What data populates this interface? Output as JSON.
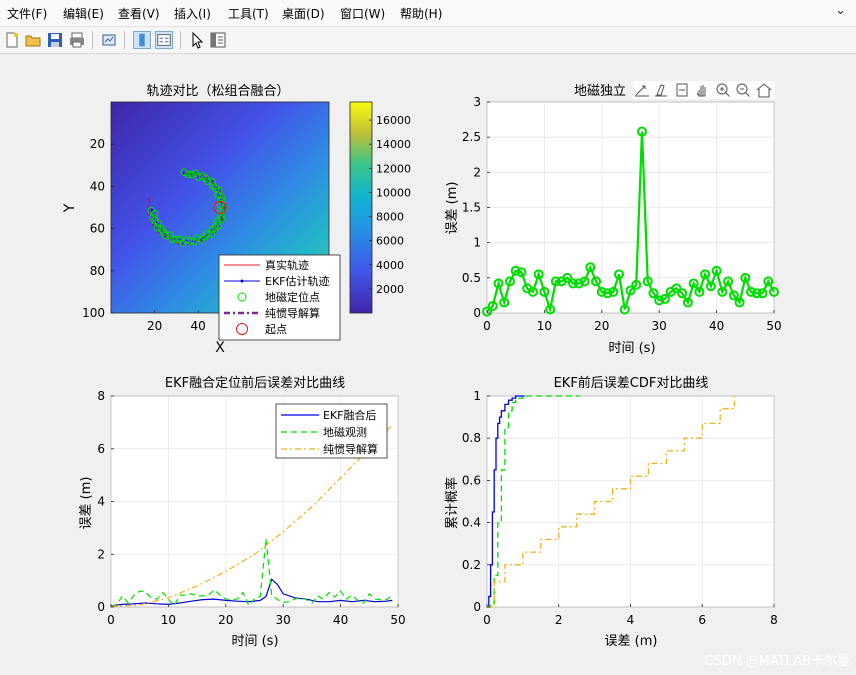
{
  "menu": [
    "文件(F)",
    "编辑(E)",
    "查看(V)",
    "插入(I)",
    "工具(T)",
    "桌面(D)",
    "窗口(W)",
    "帮助(H)"
  ],
  "close_glyph": "⌄",
  "toolbar_icons": [
    "new-file-icon",
    "open-folder-icon",
    "save-icon",
    "print-icon",
    "link-plot-icon",
    "colorbar-toggle-icon",
    "legend-toggle-icon",
    "pointer-icon",
    "property-editor-icon"
  ],
  "axes_toolbar_icons": [
    "export-icon",
    "brush-icon",
    "datatip-icon",
    "pan-icon",
    "zoom-in-icon",
    "zoom-out-icon",
    "home-icon"
  ],
  "watermark": "CSDN @MATLAB卡尔曼",
  "colors": {
    "true": "#e0202e",
    "ekf": "#0000e0",
    "mag": "#00dd00",
    "ins": "#7b2a8e",
    "ins_line": "#edb120",
    "start": "#e41a1c"
  },
  "chart_data": [
    {
      "type": "heatmap",
      "title": "轨迹对比（松组合融合）",
      "xlabel": "X",
      "ylabel": "Y",
      "xticks": [
        20,
        40,
        60,
        80
      ],
      "yticks": [
        20,
        40,
        60,
        80,
        100
      ],
      "xlim": [
        0,
        100
      ],
      "ylim": [
        0,
        100
      ],
      "colorbar": {
        "ticks": [
          2000,
          4000,
          6000,
          8000,
          10000,
          12000,
          14000,
          16000
        ],
        "range": [
          0,
          17500
        ]
      },
      "legend": {
        "position": "bottom-right",
        "entries": [
          "真实轨迹",
          "EKF估计轨迹",
          "地磁定位点",
          "纯惯导解算",
          "起点"
        ]
      },
      "start_point": {
        "x": 50,
        "y": 50
      },
      "arc": {
        "center": [
          35,
          50
        ],
        "radius": 16,
        "start_deg": -95,
        "end_deg": 180
      }
    },
    {
      "type": "line",
      "title": "地磁独立",
      "xlabel": "时间 (s)",
      "ylabel": "误差 (m)",
      "xlim": [
        0,
        50
      ],
      "ylim": [
        0,
        3
      ],
      "xticks": [
        0,
        10,
        20,
        30,
        40,
        50
      ],
      "yticks": [
        0,
        0.5,
        1,
        1.5,
        2,
        2.5,
        3
      ],
      "x": [
        0,
        1,
        2,
        3,
        4,
        5,
        6,
        7,
        8,
        9,
        10,
        11,
        12,
        13,
        14,
        15,
        16,
        17,
        18,
        19,
        20,
        21,
        22,
        23,
        24,
        25,
        26,
        27,
        28,
        29,
        30,
        31,
        32,
        33,
        34,
        35,
        36,
        37,
        38,
        39,
        40,
        41,
        42,
        43,
        44,
        45,
        46,
        47,
        48,
        49,
        50
      ],
      "values": [
        0.02,
        0.1,
        0.42,
        0.15,
        0.45,
        0.6,
        0.58,
        0.35,
        0.3,
        0.55,
        0.3,
        0.05,
        0.45,
        0.45,
        0.5,
        0.42,
        0.42,
        0.45,
        0.65,
        0.45,
        0.3,
        0.28,
        0.3,
        0.55,
        0.05,
        0.32,
        0.4,
        2.58,
        0.45,
        0.28,
        0.18,
        0.2,
        0.3,
        0.35,
        0.28,
        0.15,
        0.42,
        0.3,
        0.55,
        0.38,
        0.6,
        0.3,
        0.45,
        0.25,
        0.15,
        0.5,
        0.3,
        0.28,
        0.28,
        0.45,
        0.3
      ],
      "marker_every": 1
    },
    {
      "type": "line",
      "title": "EKF融合定位前后误差对比曲线",
      "xlabel": "时间 (s)",
      "ylabel": "误差 (m)",
      "xlim": [
        0,
        50
      ],
      "ylim": [
        0,
        8
      ],
      "xticks": [
        0,
        10,
        20,
        30,
        40,
        50
      ],
      "yticks": [
        0,
        2,
        4,
        6,
        8
      ],
      "legend": {
        "position": "top-right"
      },
      "series": [
        {
          "name": "EKF融合后",
          "x": [
            0,
            2,
            4,
            6,
            8,
            10,
            12,
            14,
            16,
            18,
            20,
            22,
            24,
            26,
            27,
            28,
            29,
            30,
            32,
            34,
            36,
            38,
            40,
            42,
            44,
            46,
            48,
            49
          ],
          "values": [
            0.05,
            0.1,
            0.12,
            0.15,
            0.12,
            0.1,
            0.15,
            0.22,
            0.28,
            0.3,
            0.25,
            0.22,
            0.2,
            0.25,
            0.4,
            1.05,
            0.85,
            0.5,
            0.35,
            0.3,
            0.2,
            0.2,
            0.25,
            0.2,
            0.25,
            0.2,
            0.22,
            0.25
          ]
        },
        {
          "name": "地磁观测",
          "x": [
            0,
            1,
            2,
            3,
            4,
            5,
            6,
            7,
            8,
            9,
            10,
            11,
            12,
            13,
            14,
            15,
            16,
            17,
            18,
            19,
            20,
            21,
            22,
            23,
            24,
            25,
            26,
            27,
            28,
            29,
            30,
            31,
            32,
            33,
            34,
            35,
            36,
            37,
            38,
            39,
            40,
            41,
            42,
            43,
            44,
            45,
            46,
            47,
            48,
            49
          ],
          "values": [
            0.02,
            0.1,
            0.42,
            0.15,
            0.45,
            0.6,
            0.58,
            0.35,
            0.3,
            0.55,
            0.3,
            0.05,
            0.45,
            0.45,
            0.5,
            0.42,
            0.42,
            0.45,
            0.65,
            0.45,
            0.3,
            0.28,
            0.3,
            0.55,
            0.05,
            0.32,
            0.4,
            2.58,
            0.45,
            0.28,
            0.18,
            0.2,
            0.3,
            0.35,
            0.28,
            0.15,
            0.42,
            0.3,
            0.55,
            0.38,
            0.6,
            0.3,
            0.45,
            0.25,
            0.15,
            0.5,
            0.3,
            0.28,
            0.28,
            0.45
          ]
        },
        {
          "name": "纯惯导解算",
          "x": [
            0,
            5,
            10,
            15,
            20,
            25,
            30,
            35,
            40,
            45,
            49
          ],
          "values": [
            0.02,
            0.08,
            0.35,
            0.8,
            1.35,
            2.0,
            2.85,
            3.8,
            4.9,
            6.0,
            6.9
          ]
        }
      ]
    },
    {
      "type": "line",
      "title": "EKF前后误差CDF对比曲线",
      "xlabel": "误差 (m)",
      "ylabel": "累计概率",
      "xlim": [
        0,
        8
      ],
      "ylim": [
        0,
        1
      ],
      "xticks": [
        0,
        2,
        4,
        6,
        8
      ],
      "yticks": [
        0,
        0.2,
        0.4,
        0.6,
        0.8,
        1
      ],
      "series": [
        {
          "name": "EKF融合后",
          "x": [
            0,
            0.05,
            0.1,
            0.15,
            0.2,
            0.25,
            0.3,
            0.35,
            0.4,
            0.5,
            0.6,
            0.7,
            0.8,
            1.0,
            1.05
          ],
          "values": [
            0.0,
            0.05,
            0.2,
            0.45,
            0.65,
            0.8,
            0.87,
            0.9,
            0.93,
            0.96,
            0.98,
            0.99,
            1.0,
            1.0,
            1.0
          ]
        },
        {
          "name": "地磁观测",
          "x": [
            0,
            0.1,
            0.2,
            0.3,
            0.4,
            0.5,
            0.6,
            0.7,
            0.8,
            1.0,
            1.5,
            2.6
          ],
          "values": [
            0.0,
            0.02,
            0.15,
            0.4,
            0.65,
            0.85,
            0.93,
            0.97,
            0.99,
            1.0,
            1.0,
            1.0
          ]
        },
        {
          "name": "纯惯导解算",
          "x": [
            0,
            0.2,
            0.5,
            1,
            1.5,
            2,
            2.5,
            3,
            3.5,
            4,
            4.5,
            5,
            5.5,
            6,
            6.5,
            6.9
          ],
          "values": [
            0.0,
            0.12,
            0.2,
            0.26,
            0.32,
            0.38,
            0.44,
            0.5,
            0.56,
            0.62,
            0.68,
            0.74,
            0.8,
            0.87,
            0.94,
            1.0
          ]
        }
      ]
    }
  ]
}
